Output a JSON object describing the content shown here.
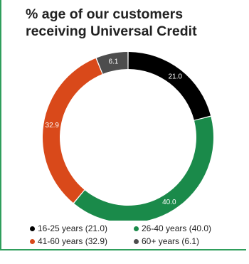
{
  "title": {
    "line1": "% age of our customers",
    "line2": "receiving Universal Credit"
  },
  "chart_data": {
    "type": "pie",
    "donut": true,
    "categories": [
      "16-25 years",
      "26-40 years",
      "41-60 years",
      "60+ years"
    ],
    "values": [
      21.0,
      40.0,
      32.9,
      6.1
    ],
    "data_labels": [
      "21.0",
      "40.0",
      "32.9",
      "6.1"
    ],
    "colors": [
      "#000000",
      "#1a8a4a",
      "#d9491a",
      "#4d4d4d"
    ],
    "legend_placement": "bottom",
    "legend": [
      {
        "label": "16-25 years (21.0)",
        "color": "#000000"
      },
      {
        "label": "26-40 years (40.0)",
        "color": "#1a8a4a"
      },
      {
        "label": "41-60 years (32.9)",
        "color": "#d9491a"
      },
      {
        "label": "60+ years (6.1)",
        "color": "#4d4d4d"
      }
    ]
  },
  "colors": {
    "accent_border": "#2f9e5c"
  }
}
